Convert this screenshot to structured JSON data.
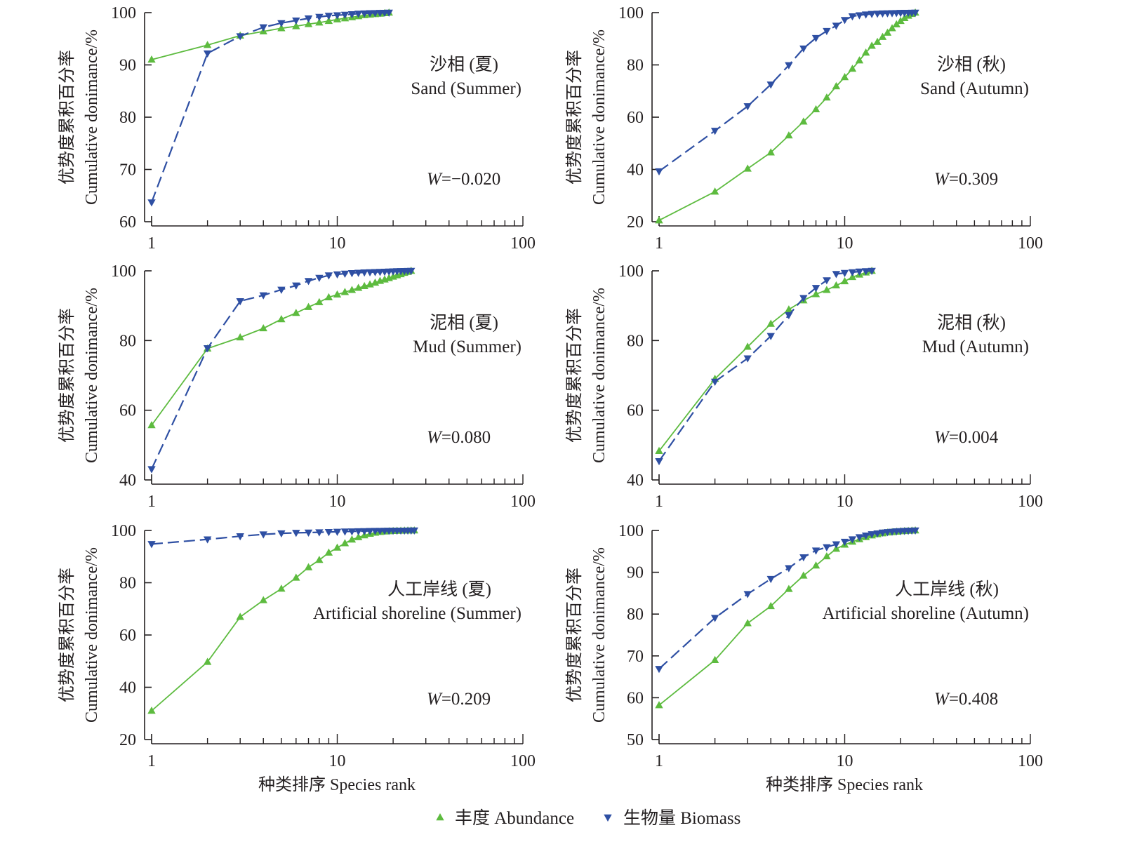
{
  "figure": {
    "legend": [
      {
        "key": "abundance",
        "label": "丰度 Abundance",
        "color": "#5dbb3f",
        "marker": "triangle-up",
        "line": "solid"
      },
      {
        "key": "biomass",
        "label": "生物量 Biomass",
        "color": "#2e4fa3",
        "marker": "triangle-down",
        "line": "dashed"
      }
    ],
    "legend_position": "bottom-center"
  },
  "chart_data": [
    {
      "type": "line",
      "title_zh": "沙相 (夏)",
      "title_en": "Sand (Summer)",
      "annotation": "W=−0.020",
      "annotation_italic": "W",
      "annotation_value": "=−0.020",
      "xlabel": "",
      "ylabel_zh": "优势度累积百分率",
      "ylabel_en": "Cumulative donimance/%",
      "xscale": "log",
      "xlim": [
        1,
        100
      ],
      "ylim": [
        60,
        100
      ],
      "xticks": [
        "1",
        "10",
        "100"
      ],
      "yticks": [
        "60",
        "70",
        "80",
        "90",
        "100"
      ],
      "series": [
        {
          "name": "丰度 Abundance",
          "key": "abundance",
          "x": [
            1,
            2,
            3,
            4,
            5,
            6,
            7,
            8,
            9,
            10,
            11,
            12,
            13,
            14,
            15,
            16,
            17,
            18,
            19
          ],
          "values": [
            91.0,
            93.8,
            95.6,
            96.4,
            97.0,
            97.4,
            97.8,
            98.1,
            98.4,
            98.7,
            98.9,
            99.1,
            99.3,
            99.5,
            99.6,
            99.7,
            99.8,
            99.9,
            100
          ]
        },
        {
          "name": "生物量 Biomass",
          "key": "biomass",
          "x": [
            1,
            2,
            3,
            4,
            5,
            6,
            7,
            8,
            9,
            10,
            11,
            12,
            13,
            14,
            15,
            16,
            17,
            18,
            19
          ],
          "values": [
            63.7,
            92.2,
            95.5,
            97.2,
            98.0,
            98.5,
            98.9,
            99.2,
            99.4,
            99.5,
            99.6,
            99.7,
            99.8,
            99.85,
            99.9,
            99.93,
            99.95,
            99.98,
            100
          ]
        }
      ]
    },
    {
      "type": "line",
      "title_zh": "沙相 (秋)",
      "title_en": "Sand (Autumn)",
      "annotation": "W=0.309",
      "annotation_italic": "W",
      "annotation_value": "=0.309",
      "xlabel": "",
      "ylabel_zh": "优势度累积百分率",
      "ylabel_en": "Cumulative donimance/%",
      "xscale": "log",
      "xlim": [
        1,
        100
      ],
      "ylim": [
        20,
        100
      ],
      "xticks": [
        "1",
        "10",
        "100"
      ],
      "yticks": [
        "20",
        "40",
        "60",
        "80",
        "100"
      ],
      "series": [
        {
          "name": "丰度 Abundance",
          "key": "abundance",
          "x": [
            1,
            2,
            3,
            4,
            5,
            6,
            7,
            8,
            9,
            10,
            11,
            12,
            13,
            14,
            15,
            16,
            17,
            18,
            19,
            20,
            21,
            22,
            23,
            24
          ],
          "values": [
            20.5,
            31.5,
            40.3,
            46.5,
            53.0,
            58.3,
            63.0,
            67.5,
            71.8,
            75.3,
            78.5,
            81.7,
            84.7,
            87.3,
            88.8,
            90.7,
            92.3,
            94.0,
            95.5,
            96.8,
            97.9,
            98.8,
            99.5,
            100
          ]
        },
        {
          "name": "生物量 Biomass",
          "key": "biomass",
          "x": [
            1,
            2,
            3,
            4,
            5,
            6,
            7,
            8,
            9,
            10,
            11,
            12,
            13,
            14,
            15,
            16,
            17,
            18,
            19,
            20,
            21,
            22,
            23,
            24
          ],
          "values": [
            39.3,
            54.8,
            64.2,
            72.5,
            79.9,
            86.3,
            90.3,
            93.0,
            95.0,
            97.2,
            98.6,
            99.0,
            99.3,
            99.5,
            99.6,
            99.7,
            99.75,
            99.8,
            99.85,
            99.9,
            99.93,
            99.95,
            99.98,
            100
          ]
        }
      ]
    },
    {
      "type": "line",
      "title_zh": "泥相 (夏)",
      "title_en": "Mud (Summer)",
      "annotation": "W=0.080",
      "annotation_italic": "W",
      "annotation_value": "=0.080",
      "xlabel": "",
      "ylabel_zh": "优势度累积百分率",
      "ylabel_en": "Cumulative donimance/%",
      "xscale": "log",
      "xlim": [
        1,
        100
      ],
      "ylim": [
        40,
        100
      ],
      "xticks": [
        "1",
        "10",
        "100"
      ],
      "yticks": [
        "40",
        "60",
        "80",
        "100"
      ],
      "series": [
        {
          "name": "丰度 Abundance",
          "key": "abundance",
          "x": [
            1,
            2,
            3,
            4,
            5,
            6,
            7,
            8,
            9,
            10,
            11,
            12,
            13,
            14,
            15,
            16,
            17,
            18,
            19,
            20,
            21,
            22,
            23,
            24,
            25
          ],
          "values": [
            55.7,
            77.7,
            80.9,
            83.5,
            86.1,
            87.9,
            89.6,
            91.0,
            92.4,
            93.2,
            93.9,
            94.5,
            95.1,
            95.6,
            96.1,
            96.6,
            97.1,
            97.5,
            97.9,
            98.3,
            98.7,
            99.0,
            99.4,
            99.7,
            100
          ]
        },
        {
          "name": "生物量 Biomass",
          "key": "biomass",
          "x": [
            1,
            2,
            3,
            4,
            5,
            6,
            7,
            8,
            9,
            10,
            11,
            12,
            13,
            14,
            15,
            16,
            17,
            18,
            19,
            20,
            21,
            22,
            23,
            24,
            25
          ],
          "values": [
            43.1,
            77.8,
            91.3,
            93.0,
            94.6,
            95.8,
            97.1,
            98.0,
            98.7,
            99.0,
            99.2,
            99.35,
            99.45,
            99.55,
            99.6,
            99.65,
            99.7,
            99.75,
            99.8,
            99.85,
            99.9,
            99.93,
            99.96,
            99.98,
            100
          ]
        }
      ]
    },
    {
      "type": "line",
      "title_zh": "泥相 (秋)",
      "title_en": "Mud (Autumn)",
      "annotation": "W=0.004",
      "annotation_italic": "W",
      "annotation_value": "=0.004",
      "xlabel": "",
      "ylabel_zh": "优势度累积百分率",
      "ylabel_en": "Cumulative donimance/%",
      "xscale": "log",
      "xlim": [
        1,
        100
      ],
      "ylim": [
        40,
        100
      ],
      "xticks": [
        "1",
        "10",
        "100"
      ],
      "yticks": [
        "40",
        "60",
        "80",
        "100"
      ],
      "series": [
        {
          "name": "丰度 Abundance",
          "key": "abundance",
          "x": [
            1,
            2,
            3,
            4,
            5,
            6,
            7,
            8,
            9,
            10,
            11,
            12,
            13,
            14
          ],
          "values": [
            48.3,
            69.0,
            78.2,
            84.8,
            88.9,
            91.5,
            93.3,
            94.5,
            95.8,
            97.0,
            98.2,
            98.9,
            99.5,
            100
          ]
        },
        {
          "name": "生物量 Biomass",
          "key": "biomass",
          "x": [
            1,
            2,
            3,
            4,
            5,
            6,
            7,
            8,
            9,
            10,
            11,
            12,
            13,
            14
          ],
          "values": [
            45.4,
            68.2,
            74.9,
            81.3,
            87.3,
            92.2,
            95.1,
            97.3,
            99.1,
            99.4,
            99.6,
            99.8,
            99.9,
            100
          ]
        }
      ]
    },
    {
      "type": "line",
      "title_zh": "人工岸线 (夏)",
      "title_en": "Artificial shoreline (Summer)",
      "annotation": "W=0.209",
      "annotation_italic": "W",
      "annotation_value": "=0.209",
      "xlabel": "种类排序 Species rank",
      "ylabel_zh": "优势度累积百分率",
      "ylabel_en": "Cumulative donimance/%",
      "xscale": "log",
      "xlim": [
        1,
        100
      ],
      "ylim": [
        20,
        100
      ],
      "xticks": [
        "1",
        "10",
        "100"
      ],
      "yticks": [
        "20",
        "40",
        "60",
        "80",
        "100"
      ],
      "series": [
        {
          "name": "丰度 Abundance",
          "key": "abundance",
          "x": [
            1,
            2,
            3,
            4,
            5,
            6,
            7,
            8,
            9,
            10,
            11,
            12,
            13,
            14,
            15,
            16,
            17,
            18,
            19,
            20,
            21,
            22,
            23,
            24,
            25,
            26
          ],
          "values": [
            31.0,
            49.7,
            66.9,
            73.3,
            77.7,
            81.9,
            85.9,
            88.7,
            91.5,
            93.4,
            95.1,
            96.5,
            97.4,
            98.1,
            98.7,
            99.1,
            99.4,
            99.6,
            99.7,
            99.8,
            99.85,
            99.9,
            99.93,
            99.95,
            99.98,
            100
          ]
        },
        {
          "name": "生物量 Biomass",
          "key": "biomass",
          "x": [
            1,
            2,
            3,
            4,
            5,
            6,
            7,
            8,
            9,
            10,
            11,
            12,
            13,
            14,
            15,
            16,
            17,
            18,
            19,
            20,
            21,
            22,
            23,
            24,
            25,
            26
          ],
          "values": [
            94.8,
            96.6,
            97.8,
            98.5,
            98.9,
            99.1,
            99.2,
            99.3,
            99.4,
            99.5,
            99.6,
            99.65,
            99.7,
            99.75,
            99.8,
            99.83,
            99.86,
            99.88,
            99.9,
            99.92,
            99.94,
            99.95,
            99.96,
            99.97,
            99.98,
            100
          ]
        }
      ]
    },
    {
      "type": "line",
      "title_zh": "人工岸线 (秋)",
      "title_en": "Artificial shoreline (Autumn)",
      "annotation": "W=0.408",
      "annotation_italic": "W",
      "annotation_value": "=0.408",
      "xlabel": "种类排序 Species rank",
      "ylabel_zh": "优势度累积百分率",
      "ylabel_en": "Cumulative donimance/%",
      "xscale": "log",
      "xlim": [
        1,
        100
      ],
      "ylim": [
        50,
        100
      ],
      "xticks": [
        "1",
        "10",
        "100"
      ],
      "yticks": [
        "50",
        "60",
        "70",
        "80",
        "90",
        "100"
      ],
      "series": [
        {
          "name": "丰度 Abundance",
          "key": "abundance",
          "x": [
            1,
            2,
            3,
            4,
            5,
            6,
            7,
            8,
            9,
            10,
            11,
            12,
            13,
            14,
            15,
            16,
            17,
            18,
            19,
            20,
            21,
            22,
            23,
            24
          ],
          "values": [
            58.2,
            69.0,
            77.8,
            81.9,
            86.0,
            89.2,
            91.6,
            93.8,
            95.6,
            96.6,
            97.3,
            97.9,
            98.4,
            98.8,
            99.1,
            99.3,
            99.5,
            99.6,
            99.7,
            99.8,
            99.85,
            99.9,
            99.95,
            100
          ]
        },
        {
          "name": "生物量 Biomass",
          "key": "biomass",
          "x": [
            1,
            2,
            3,
            4,
            5,
            6,
            7,
            8,
            9,
            10,
            11,
            12,
            13,
            14,
            15,
            16,
            17,
            18,
            19,
            20,
            21,
            22,
            23,
            24
          ],
          "values": [
            66.9,
            79.1,
            84.8,
            88.4,
            91.0,
            93.6,
            95.2,
            96.0,
            96.7,
            97.3,
            97.9,
            98.4,
            98.8,
            99.1,
            99.3,
            99.5,
            99.6,
            99.7,
            99.8,
            99.85,
            99.9,
            99.94,
            99.97,
            100
          ]
        }
      ]
    }
  ]
}
